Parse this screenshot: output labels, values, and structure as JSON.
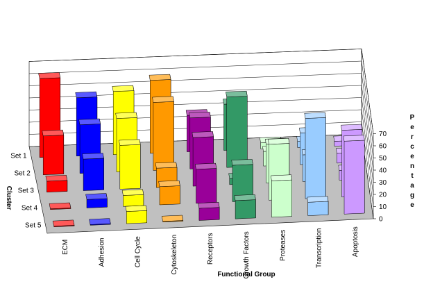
{
  "chart_data": {
    "type": "bar",
    "subtype": "3d-bar",
    "title": "",
    "xlabel": "Functional Group",
    "ylabel": "Cluster",
    "zlabel": "Percentage",
    "zlim": [
      0,
      70
    ],
    "z_ticks": [
      0,
      10,
      20,
      30,
      40,
      50,
      60,
      70
    ],
    "grid": true,
    "legend": "none",
    "categories": [
      "ECM",
      "Adhesion",
      "Cell Cycle",
      "Cytoskeleton",
      "Receptors",
      "Growth Factors",
      "Proteases",
      "Transcription",
      "Apoptosis"
    ],
    "series": [
      {
        "name": "Set 1",
        "values": [
          65,
          48,
          52,
          60,
          30,
          38,
          5,
          5,
          4
        ]
      },
      {
        "name": "Set 2",
        "values": [
          32,
          40,
          44,
          56,
          42,
          58,
          12,
          26,
          8
        ]
      },
      {
        "name": "Set 3",
        "values": [
          9,
          26,
          36,
          16,
          40,
          5,
          32,
          22,
          8
        ]
      },
      {
        "name": "Set 4",
        "values": [
          0,
          7,
          9,
          15,
          28,
          30,
          46,
          66,
          55
        ]
      },
      {
        "name": "Set 5",
        "values": [
          0,
          0,
          10,
          0,
          10,
          15,
          30,
          11,
          60
        ]
      }
    ],
    "colors": [
      "#ff0000",
      "#0000ff",
      "#ffff00",
      "#ff9900",
      "#990099",
      "#339966",
      "#ccffcc",
      "#99ccff",
      "#cc99ff"
    ]
  }
}
